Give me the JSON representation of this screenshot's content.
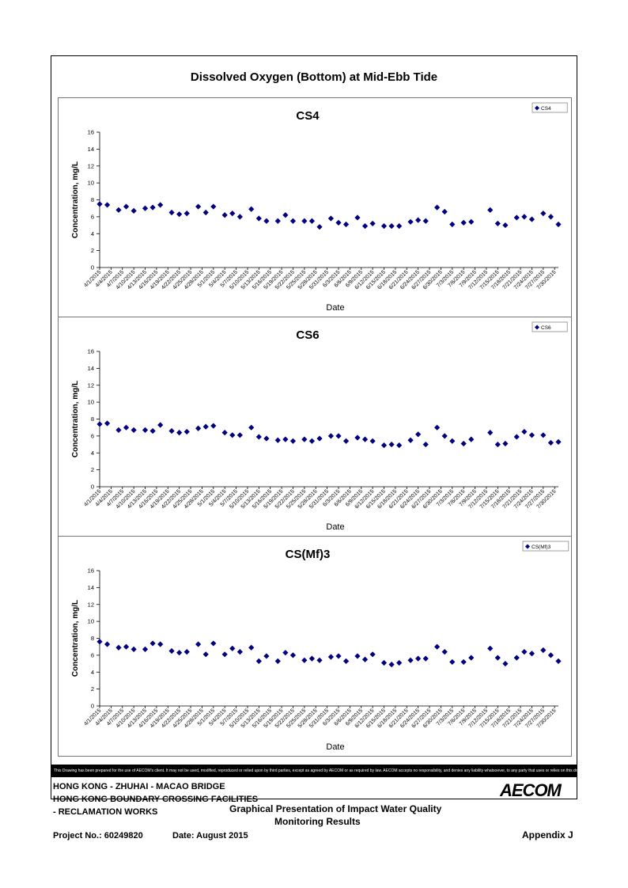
{
  "main_title": "Dissolved Oxygen (Bottom) at Mid-Ebb Tide",
  "disclaimer": "This Drawing has been prepared for the use of AECOM's client. It may not be used, modified, reproduced or relied upon by third parties, except as agreed by AECOM or as required by law. AECOM accepts no responsibility, and denies any liability whatsoever, to any party that uses or relies on this drawing without AECOM's express written consent.",
  "footer": {
    "line1": "HONG KONG - ZHUHAI - MACAO BRIDGE",
    "line2": "HONG KONG BOUNDARY CROSSING FACILITIES",
    "line3": "- RECLAMATION WORKS",
    "project_no": "Project No.: 60249820",
    "date": "Date: August 2015",
    "presentation_title_1": "Graphical Presentation of Impact Water Quality",
    "presentation_title_2": "Monitoring Results",
    "appendix": "Appendix J",
    "logo": "AECOM"
  },
  "colors": {
    "marker": "#000080",
    "axis": "#000000"
  },
  "chart_data": [
    {
      "type": "scatter",
      "title": "CS4",
      "xlabel": "Date",
      "ylabel": "Concentration, mg/L",
      "ylim": [
        0,
        16
      ],
      "yticks": [
        0,
        2,
        4,
        6,
        8,
        10,
        12,
        14,
        16
      ],
      "xlim": [
        "4/1/2015",
        "7/31/2015"
      ],
      "xticks": [
        "4/1/2015",
        "4/4/2015",
        "4/7/2015",
        "4/10/2015",
        "4/13/2015",
        "4/16/2015",
        "4/19/2015",
        "4/22/2015",
        "4/25/2015",
        "4/28/2015",
        "5/1/2015",
        "5/4/2015",
        "5/7/2015",
        "5/10/2015",
        "5/13/2015",
        "5/16/2015",
        "5/19/2015",
        "5/22/2015",
        "5/25/2015",
        "5/28/2015",
        "5/31/2015",
        "6/3/2015",
        "6/6/2015",
        "6/9/2015",
        "6/12/2015",
        "6/15/2015",
        "6/18/2015",
        "6/21/2015",
        "6/24/2015",
        "6/27/2015",
        "6/30/2015",
        "7/3/2015",
        "7/6/2015",
        "7/9/2015",
        "7/12/2015",
        "7/15/2015",
        "7/18/2015",
        "7/21/2015",
        "7/24/2015",
        "7/27/2015",
        "7/30/2015"
      ],
      "grid": false,
      "legend": "top-right",
      "series": [
        {
          "name": "CS4",
          "x": [
            "4/1/2015",
            "4/3/2015",
            "4/6/2015",
            "4/8/2015",
            "4/10/2015",
            "4/13/2015",
            "4/15/2015",
            "4/17/2015",
            "4/20/2015",
            "4/22/2015",
            "4/24/2015",
            "4/27/2015",
            "4/29/2015",
            "5/1/2015",
            "5/4/2015",
            "5/6/2015",
            "5/8/2015",
            "5/11/2015",
            "5/13/2015",
            "5/15/2015",
            "5/18/2015",
            "5/20/2015",
            "5/22/2015",
            "5/25/2015",
            "5/27/2015",
            "5/29/2015",
            "6/1/2015",
            "6/3/2015",
            "6/5/2015",
            "6/8/2015",
            "6/10/2015",
            "6/12/2015",
            "6/15/2015",
            "6/17/2015",
            "6/19/2015",
            "6/22/2015",
            "6/24/2015",
            "6/26/2015",
            "6/29/2015",
            "7/1/2015",
            "7/3/2015",
            "7/6/2015",
            "7/8/2015",
            "7/13/2015",
            "7/15/2015",
            "7/17/2015",
            "7/20/2015",
            "7/22/2015",
            "7/24/2015",
            "7/27/2015",
            "7/29/2015",
            "7/31/2015"
          ],
          "y": [
            7.5,
            7.4,
            6.8,
            7.2,
            6.7,
            7.0,
            7.1,
            7.4,
            6.5,
            6.3,
            6.4,
            7.2,
            6.5,
            7.2,
            6.2,
            6.4,
            6.0,
            6.9,
            5.8,
            5.5,
            5.5,
            6.2,
            5.5,
            5.5,
            5.5,
            4.8,
            5.8,
            5.3,
            5.1,
            5.9,
            4.9,
            5.2,
            4.9,
            4.9,
            4.9,
            5.4,
            5.6,
            5.5,
            7.1,
            6.6,
            5.1,
            5.3,
            5.4,
            6.8,
            5.2,
            5.0,
            5.9,
            6.0,
            5.7,
            6.4,
            6.0,
            5.1
          ]
        }
      ]
    },
    {
      "type": "scatter",
      "title": "CS6",
      "xlabel": "Date",
      "ylabel": "Concentration, mg/L",
      "ylim": [
        0,
        16
      ],
      "yticks": [
        0,
        2,
        4,
        6,
        8,
        10,
        12,
        14,
        16
      ],
      "xlim": [
        "4/1/2015",
        "7/31/2015"
      ],
      "xticks": [
        "4/1/2015",
        "4/4/2015",
        "4/7/2015",
        "4/10/2015",
        "4/13/2015",
        "4/16/2015",
        "4/19/2015",
        "4/22/2015",
        "4/25/2015",
        "4/28/2015",
        "5/1/2015",
        "5/4/2015",
        "5/7/2015",
        "5/10/2015",
        "5/13/2015",
        "5/16/2015",
        "5/19/2015",
        "5/22/2015",
        "5/25/2015",
        "5/28/2015",
        "5/31/2015",
        "6/3/2015",
        "6/6/2015",
        "6/9/2015",
        "6/12/2015",
        "6/15/2015",
        "6/18/2015",
        "6/21/2015",
        "6/24/2015",
        "6/27/2015",
        "6/30/2015",
        "7/3/2015",
        "7/6/2015",
        "7/9/2015",
        "7/12/2015",
        "7/15/2015",
        "7/18/2015",
        "7/21/2015",
        "7/24/2015",
        "7/27/2015",
        "7/30/2015"
      ],
      "grid": false,
      "legend": "top-right",
      "series": [
        {
          "name": "CS6",
          "x": [
            "4/1/2015",
            "4/3/2015",
            "4/6/2015",
            "4/8/2015",
            "4/10/2015",
            "4/13/2015",
            "4/15/2015",
            "4/17/2015",
            "4/20/2015",
            "4/22/2015",
            "4/24/2015",
            "4/27/2015",
            "4/29/2015",
            "5/1/2015",
            "5/4/2015",
            "5/6/2015",
            "5/8/2015",
            "5/11/2015",
            "5/13/2015",
            "5/15/2015",
            "5/18/2015",
            "5/20/2015",
            "5/22/2015",
            "5/25/2015",
            "5/27/2015",
            "5/29/2015",
            "6/1/2015",
            "6/3/2015",
            "6/5/2015",
            "6/8/2015",
            "6/10/2015",
            "6/12/2015",
            "6/15/2015",
            "6/17/2015",
            "6/19/2015",
            "6/22/2015",
            "6/24/2015",
            "6/26/2015",
            "6/29/2015",
            "7/1/2015",
            "7/3/2015",
            "7/6/2015",
            "7/8/2015",
            "7/13/2015",
            "7/15/2015",
            "7/17/2015",
            "7/20/2015",
            "7/22/2015",
            "7/24/2015",
            "7/27/2015",
            "7/29/2015",
            "7/31/2015"
          ],
          "y": [
            7.4,
            7.5,
            6.7,
            7.0,
            6.7,
            6.7,
            6.6,
            7.3,
            6.6,
            6.4,
            6.5,
            6.9,
            7.1,
            7.2,
            6.4,
            6.1,
            6.1,
            7.0,
            5.9,
            5.7,
            5.5,
            5.6,
            5.4,
            5.6,
            5.4,
            5.7,
            6.0,
            6.0,
            5.4,
            5.8,
            5.6,
            5.4,
            4.9,
            5.0,
            4.9,
            5.5,
            6.2,
            5.0,
            7.0,
            6.0,
            5.4,
            5.1,
            5.6,
            6.4,
            5.0,
            5.1,
            5.9,
            6.5,
            6.1,
            6.1,
            5.2,
            5.3
          ]
        }
      ]
    },
    {
      "type": "scatter",
      "title": "CS(Mf)3",
      "xlabel": "Date",
      "ylabel": "Concentration, mg/L",
      "ylim": [
        0,
        16
      ],
      "yticks": [
        0,
        2,
        4,
        6,
        8,
        10,
        12,
        14,
        16
      ],
      "xlim": [
        "4/1/2015",
        "7/31/2015"
      ],
      "xticks": [
        "4/1/2015",
        "4/4/2015",
        "4/7/2015",
        "4/10/2015",
        "4/13/2015",
        "4/16/2015",
        "4/19/2015",
        "4/22/2015",
        "4/25/2015",
        "4/28/2015",
        "5/1/2015",
        "5/4/2015",
        "5/7/2015",
        "5/10/2015",
        "5/13/2015",
        "5/16/2015",
        "5/19/2015",
        "5/22/2015",
        "5/25/2015",
        "5/28/2015",
        "5/31/2015",
        "6/3/2015",
        "6/6/2015",
        "6/9/2015",
        "6/12/2015",
        "6/15/2015",
        "6/18/2015",
        "6/21/2015",
        "6/24/2015",
        "6/27/2015",
        "6/30/2015",
        "7/3/2015",
        "7/6/2015",
        "7/9/2015",
        "7/12/2015",
        "7/15/2015",
        "7/18/2015",
        "7/21/2015",
        "7/24/2015",
        "7/27/2015",
        "7/30/2015"
      ],
      "grid": false,
      "legend": "top-right",
      "series": [
        {
          "name": "CS(Mf)3",
          "x": [
            "4/1/2015",
            "4/3/2015",
            "4/6/2015",
            "4/8/2015",
            "4/10/2015",
            "4/13/2015",
            "4/15/2015",
            "4/17/2015",
            "4/20/2015",
            "4/22/2015",
            "4/24/2015",
            "4/27/2015",
            "4/29/2015",
            "5/1/2015",
            "5/4/2015",
            "5/6/2015",
            "5/8/2015",
            "5/11/2015",
            "5/13/2015",
            "5/15/2015",
            "5/18/2015",
            "5/20/2015",
            "5/22/2015",
            "5/25/2015",
            "5/27/2015",
            "5/29/2015",
            "6/1/2015",
            "6/3/2015",
            "6/5/2015",
            "6/8/2015",
            "6/10/2015",
            "6/12/2015",
            "6/15/2015",
            "6/17/2015",
            "6/19/2015",
            "6/22/2015",
            "6/24/2015",
            "6/26/2015",
            "6/29/2015",
            "7/1/2015",
            "7/3/2015",
            "7/6/2015",
            "7/8/2015",
            "7/13/2015",
            "7/15/2015",
            "7/17/2015",
            "7/20/2015",
            "7/22/2015",
            "7/24/2015",
            "7/27/2015",
            "7/29/2015",
            "7/31/2015"
          ],
          "y": [
            7.6,
            7.3,
            6.9,
            7.0,
            6.7,
            6.7,
            7.4,
            7.3,
            6.5,
            6.3,
            6.4,
            7.3,
            6.1,
            7.4,
            6.1,
            6.8,
            6.4,
            6.9,
            5.3,
            5.9,
            5.3,
            6.3,
            6.0,
            5.4,
            5.6,
            5.4,
            5.8,
            5.9,
            5.3,
            5.9,
            5.5,
            6.1,
            5.1,
            4.9,
            5.1,
            5.4,
            5.6,
            5.6,
            7.0,
            6.4,
            5.2,
            5.2,
            5.7,
            6.8,
            5.7,
            5.0,
            5.7,
            6.4,
            6.2,
            6.6,
            6.0,
            5.3
          ]
        }
      ]
    }
  ]
}
